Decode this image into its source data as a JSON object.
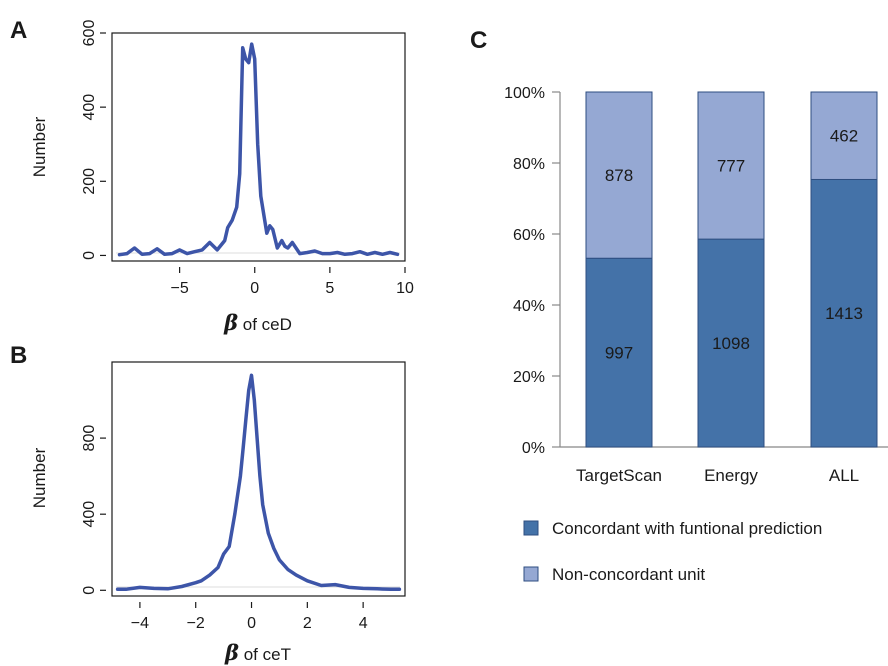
{
  "chart_data": [
    {
      "panel": "A",
      "type": "line",
      "xlabel_symbol": "β",
      "xlabel_text": " of ceD",
      "ylabel": "Number",
      "xlim": [
        -9.5,
        10
      ],
      "ylim": [
        -15,
        600
      ],
      "xticks": [
        -5,
        0,
        5,
        10
      ],
      "yticks": [
        0,
        200,
        400,
        600
      ],
      "color": "#3D55A8",
      "series": [
        {
          "x": [
            -9,
            -8.5,
            -8,
            -7.5,
            -7,
            -6.5,
            -6,
            -5.5,
            -5,
            -4.5,
            -4,
            -3.5,
            -3,
            -2.5,
            -2,
            -1.8,
            -1.5,
            -1.2,
            -1,
            -0.8,
            -0.6,
            -0.4,
            -0.2,
            0,
            0.2,
            0.4,
            0.6,
            0.8,
            1,
            1.2,
            1.5,
            1.8,
            2,
            2.2,
            2.5,
            3,
            3.5,
            4,
            4.5,
            5,
            5.5,
            6,
            6.5,
            7,
            7.5,
            8,
            8.5,
            9,
            9.5
          ],
          "y": [
            2,
            5,
            20,
            3,
            5,
            18,
            3,
            5,
            15,
            5,
            10,
            15,
            35,
            15,
            40,
            75,
            95,
            130,
            220,
            560,
            530,
            520,
            570,
            530,
            300,
            160,
            110,
            60,
            80,
            70,
            20,
            40,
            25,
            20,
            35,
            5,
            8,
            12,
            5,
            5,
            8,
            3,
            5,
            10,
            3,
            8,
            3,
            8,
            3
          ]
        }
      ]
    },
    {
      "panel": "B",
      "type": "line",
      "xlabel_symbol": "β",
      "xlabel_text": " of ceT",
      "ylabel": "Number",
      "xlim": [
        -5,
        5.5
      ],
      "ylim": [
        -30,
        1200
      ],
      "xticks": [
        -4,
        -2,
        0,
        2,
        4
      ],
      "yticks": [
        0,
        400,
        800
      ],
      "color": "#3D55A8",
      "series": [
        {
          "x": [
            -4.8,
            -4.5,
            -4,
            -3.5,
            -3,
            -2.5,
            -2,
            -1.8,
            -1.5,
            -1.2,
            -1,
            -0.8,
            -0.6,
            -0.4,
            -0.3,
            -0.2,
            -0.1,
            0,
            0.1,
            0.2,
            0.3,
            0.4,
            0.6,
            0.8,
            1,
            1.3,
            1.6,
            2,
            2.5,
            3,
            3.5,
            4,
            4.5,
            5,
            5.3
          ],
          "y": [
            5,
            5,
            15,
            10,
            8,
            20,
            40,
            50,
            80,
            120,
            190,
            230,
            400,
            600,
            750,
            900,
            1050,
            1130,
            1000,
            800,
            600,
            450,
            300,
            220,
            160,
            110,
            80,
            50,
            25,
            30,
            15,
            10,
            8,
            5,
            5
          ]
        }
      ]
    },
    {
      "panel": "C",
      "type": "bar",
      "stacked": true,
      "categories": [
        "TargetScan",
        "Energy",
        "ALL"
      ],
      "yticks": [
        "0%",
        "20%",
        "40%",
        "60%",
        "80%",
        "100%"
      ],
      "series": [
        {
          "name": "Concordant with funtional prediction",
          "values": [
            997,
            1098,
            1413
          ],
          "color": "#4472A8"
        },
        {
          "name": "Non-concordant unit",
          "values": [
            878,
            777,
            462
          ],
          "color": "#95A8D3"
        }
      ],
      "legend_position": "bottom"
    }
  ]
}
